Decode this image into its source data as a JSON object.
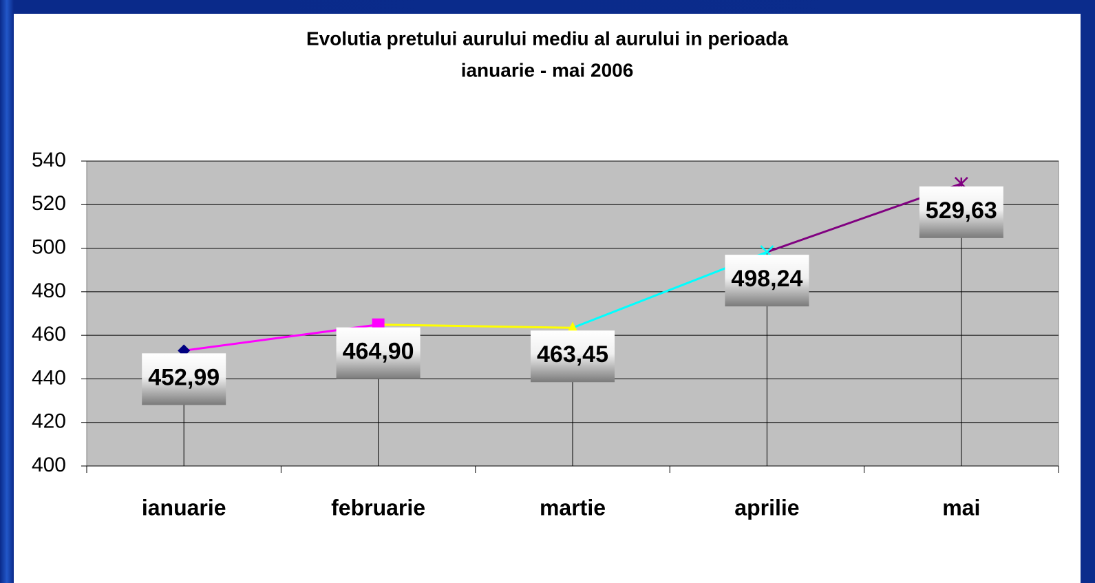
{
  "chart_data": {
    "type": "line",
    "title": [
      "Evolutia pretului aurului mediu al aurului in perioada",
      "ianuarie - mai 2006"
    ],
    "categories": [
      "ianuarie",
      "februarie",
      "martie",
      "aprilie",
      "mai"
    ],
    "values": [
      452.99,
      464.9,
      463.45,
      498.24,
      529.63
    ],
    "value_labels": [
      "452,99",
      "464,90",
      "463,45",
      "498,24",
      "529,63"
    ],
    "point_colors": [
      "#000080",
      "#ff00ff",
      "#ffff00",
      "#00ffff",
      "#800080"
    ],
    "markers": [
      "diamond",
      "square",
      "triangle",
      "x",
      "star"
    ],
    "ylim": [
      400,
      540
    ],
    "yticks": [
      400,
      420,
      440,
      460,
      480,
      500,
      520,
      540
    ],
    "grid": true,
    "drop_lines": true
  }
}
